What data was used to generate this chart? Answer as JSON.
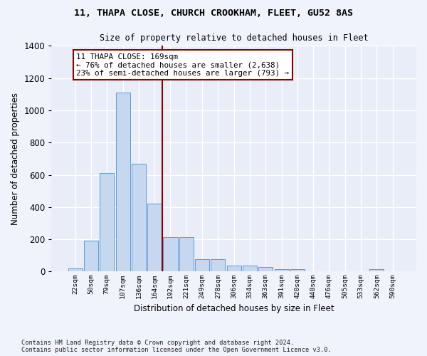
{
  "title1": "11, THAPA CLOSE, CHURCH CROOKHAM, FLEET, GU52 8AS",
  "title2": "Size of property relative to detached houses in Fleet",
  "xlabel": "Distribution of detached houses by size in Fleet",
  "ylabel": "Number of detached properties",
  "bar_color": "#c5d8f0",
  "bar_edge_color": "#5b9bd5",
  "background_color": "#e8edf8",
  "grid_color": "#ffffff",
  "fig_facecolor": "#f0f3fc",
  "categories": [
    "22sqm",
    "50sqm",
    "79sqm",
    "107sqm",
    "136sqm",
    "164sqm",
    "192sqm",
    "221sqm",
    "249sqm",
    "278sqm",
    "306sqm",
    "334sqm",
    "363sqm",
    "391sqm",
    "420sqm",
    "448sqm",
    "476sqm",
    "505sqm",
    "533sqm",
    "562sqm",
    "590sqm"
  ],
  "values": [
    20,
    193,
    610,
    1110,
    670,
    423,
    215,
    215,
    75,
    75,
    35,
    35,
    28,
    15,
    15,
    0,
    0,
    0,
    0,
    15,
    0
  ],
  "ylim": [
    0,
    1400
  ],
  "yticks": [
    0,
    200,
    400,
    600,
    800,
    1000,
    1200,
    1400
  ],
  "vline_x": 5.5,
  "annotation_title": "11 THAPA CLOSE: 169sqm",
  "annotation_line1": "← 76% of detached houses are smaller (2,638)",
  "annotation_line2": "23% of semi-detached houses are larger (793) →",
  "vline_color": "#8b0000",
  "footer1": "Contains HM Land Registry data © Crown copyright and database right 2024.",
  "footer2": "Contains public sector information licensed under the Open Government Licence v3.0."
}
